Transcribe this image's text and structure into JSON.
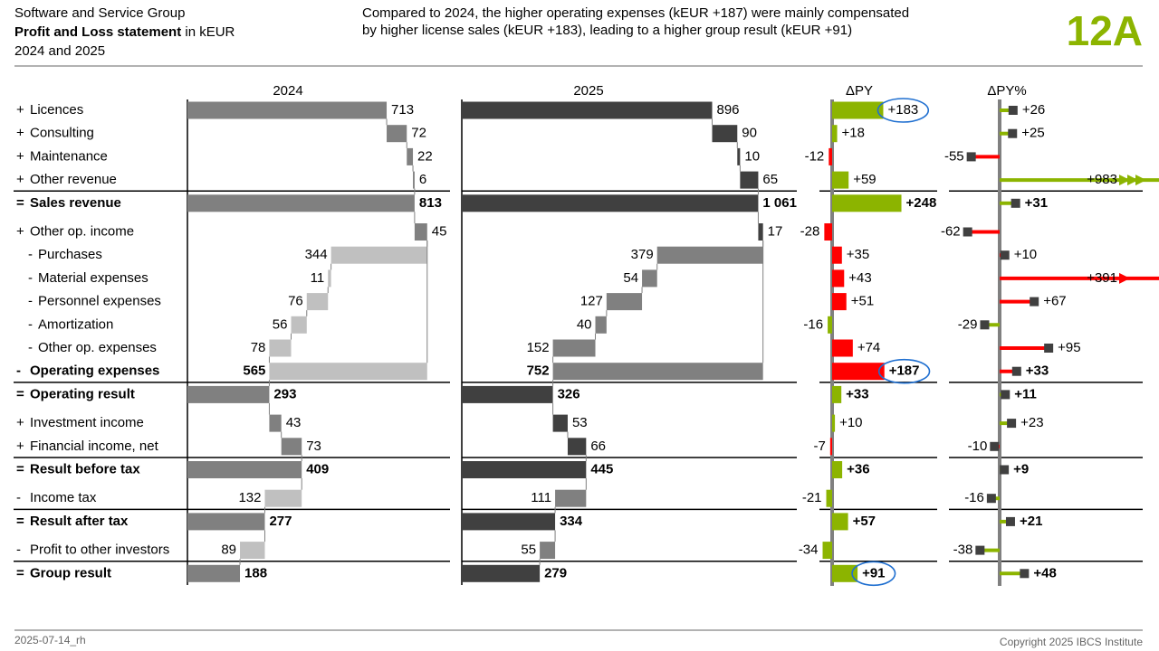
{
  "header": {
    "company": "Software and Service Group",
    "title": "Profit and Loss statement",
    "unit": "in kEUR",
    "period": "2024 and 2025",
    "message": [
      "Compared to 2024, the higher operating expenses (kEUR +187) were mainly compensated",
      "by higher license sales (kEUR +183), leading to a higher group result (kEUR +91)"
    ],
    "page_id": "12A"
  },
  "chart_data": {
    "type": "waterfall",
    "rows": [
      {
        "sign": "+",
        "label": "Licences"
      },
      {
        "sign": "+",
        "label": "Consulting"
      },
      {
        "sign": "+",
        "label": "Maintenance"
      },
      {
        "sign": "+",
        "label": "Other revenue"
      },
      {
        "sign": "=",
        "label": "Sales revenue",
        "bold": true
      },
      {
        "sign": "+",
        "label": "Other op. income"
      },
      {
        "sign": "-",
        "label": "Purchases",
        "indent": true
      },
      {
        "sign": "-",
        "label": "Material expenses",
        "indent": true
      },
      {
        "sign": "-",
        "label": "Personnel expenses",
        "indent": true
      },
      {
        "sign": "-",
        "label": "Amortization",
        "indent": true
      },
      {
        "sign": "-",
        "label": "Other op. expenses",
        "indent": true
      },
      {
        "sign": "-",
        "label": "Operating expenses",
        "bold": true
      },
      {
        "sign": "=",
        "label": "Operating result",
        "bold": true
      },
      {
        "sign": "+",
        "label": "Investment income"
      },
      {
        "sign": "+",
        "label": "Financial income, net"
      },
      {
        "sign": "=",
        "label": "Result before tax",
        "bold": true
      },
      {
        "sign": "-",
        "label": "Income tax"
      },
      {
        "sign": "=",
        "label": "Result after tax",
        "bold": true
      },
      {
        "sign": "-",
        "label": "Profit to other investors"
      },
      {
        "sign": "=",
        "label": "Group result",
        "bold": true
      }
    ],
    "series": [
      {
        "name": "2024",
        "color": "#808080",
        "negative_color": "#c0c0c0",
        "values": [
          713,
          72,
          22,
          6,
          813,
          45,
          344,
          11,
          76,
          56,
          78,
          565,
          293,
          43,
          73,
          409,
          132,
          277,
          89,
          188
        ]
      },
      {
        "name": "2025",
        "color": "#404040",
        "negative_color": "#808080",
        "values": [
          896,
          90,
          10,
          65,
          1061,
          17,
          379,
          54,
          127,
          40,
          152,
          752,
          326,
          53,
          66,
          445,
          111,
          334,
          55,
          279
        ],
        "value_labels": [
          "896",
          "90",
          "10",
          "65",
          "1 061",
          "17",
          "379",
          "54",
          "127",
          "40",
          "152",
          "752",
          "326",
          "53",
          "66",
          "445",
          "111",
          "334",
          "55",
          "279"
        ]
      }
    ],
    "delta": {
      "name": "ΔPY",
      "good_color": "#8cb400",
      "bad_color": "#ff0000",
      "highlighted": [
        0,
        11,
        19
      ],
      "values": [
        183,
        18,
        -12,
        59,
        248,
        -28,
        35,
        43,
        51,
        -16,
        74,
        187,
        33,
        10,
        -7,
        36,
        -21,
        57,
        -34,
        91
      ],
      "value_labels": [
        "+183",
        "+18",
        "-12",
        "+59",
        "+248",
        "-28",
        "+35",
        "+43",
        "+51",
        "-16",
        "+74",
        "+187",
        "+33",
        "+10",
        "-7",
        "+36",
        "-21",
        "+57",
        "-34",
        "+91"
      ]
    },
    "delta_pct": {
      "name": "ΔPY%",
      "good_color": "#8cb400",
      "bad_color": "#ff0000",
      "marker_color": "#404040",
      "values": [
        26,
        25,
        -55,
        983,
        31,
        -62,
        10,
        391,
        67,
        -29,
        95,
        33,
        11,
        23,
        -10,
        9,
        -16,
        21,
        -38,
        48
      ],
      "value_labels": [
        "+26",
        "+25",
        "-55",
        "+983",
        "+31",
        "-62",
        "+10",
        "+391",
        "+67",
        "-29",
        "+95",
        "+33",
        "+11",
        "+23",
        "-10",
        "+9",
        "-16",
        "+21",
        "-38",
        "+48"
      ]
    }
  },
  "footer": {
    "date": "2025-07-14_rh",
    "copyright": "Copyright 2025 IBCS Institute"
  }
}
